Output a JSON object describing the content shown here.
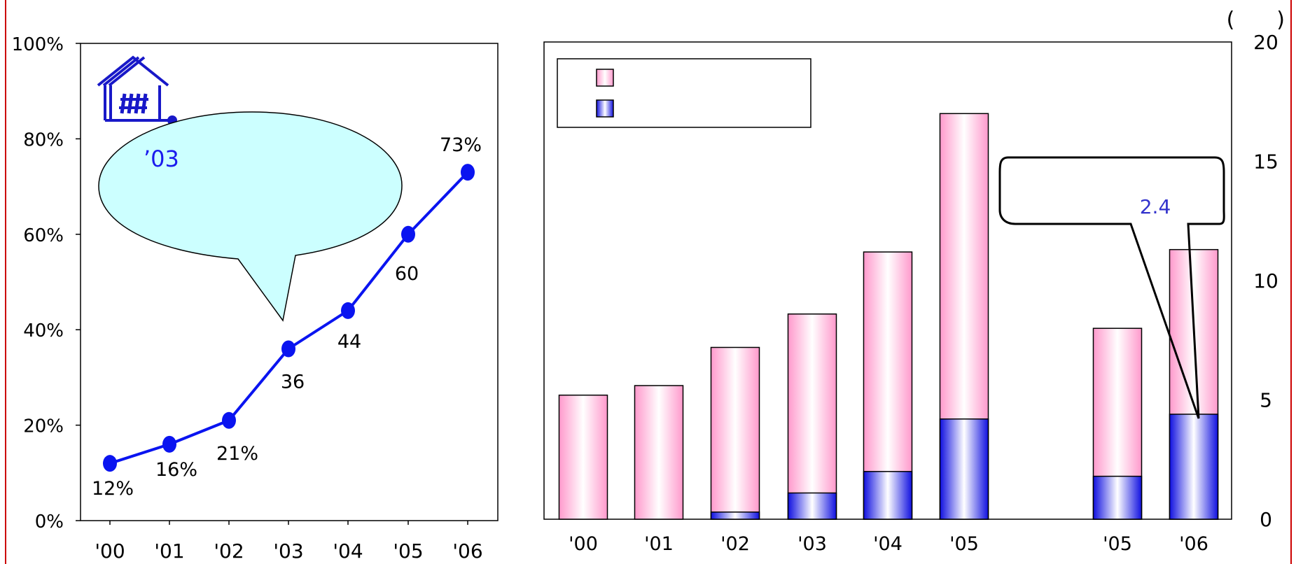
{
  "chart_data": [
    {
      "type": "line",
      "categories": [
        "'00",
        "'01",
        "'02",
        "'03",
        "'04",
        "'05",
        "'06"
      ],
      "series": [
        {
          "values": [
            12,
            16,
            21,
            36,
            44,
            60,
            73
          ]
        }
      ],
      "point_labels": [
        "12%",
        "16%",
        "21%",
        "36",
        "44",
        "60",
        "73%"
      ],
      "ylim": [
        0,
        100
      ],
      "y_ticks": [
        "0%",
        "20%",
        "40%",
        "60%",
        "80%",
        "100%"
      ],
      "y_tick_values": [
        0,
        20,
        40,
        60,
        80,
        100
      ],
      "annotation": "’03",
      "colors": {
        "line": "#0a14f0",
        "bubble_fill": "#ccffff",
        "logo": "#1818c8"
      }
    },
    {
      "type": "bar",
      "categories": [
        "'00",
        "'01",
        "'02",
        "'03",
        "'04",
        "'05",
        "'05",
        "'06"
      ],
      "series": [
        {
          "values": [
            5.2,
            5.6,
            7.2,
            8.6,
            11.2,
            17.0,
            8.0,
            11.3
          ]
        },
        {
          "values": [
            0,
            0,
            0.3,
            1.1,
            2.0,
            4.2,
            1.8,
            4.4
          ]
        }
      ],
      "ylim": [
        0,
        20
      ],
      "y_ticks": [
        "0",
        "5",
        "10",
        "15",
        "20"
      ],
      "y_tick_values": [
        0,
        5,
        10,
        15,
        20
      ],
      "unit_bracket": "(　　)",
      "legend_entries": [
        "",
        ""
      ],
      "callout": "2.4",
      "colors": {
        "total_bar": "#ff99cc",
        "sub_bar": "#1010e0",
        "callout_text": "#3333cc"
      }
    }
  ]
}
